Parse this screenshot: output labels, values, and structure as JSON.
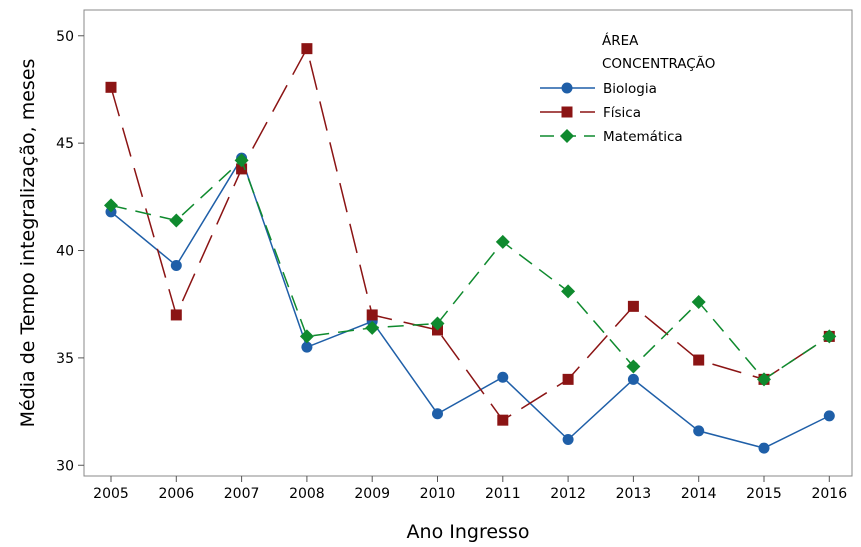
{
  "chart_data": {
    "type": "line",
    "xlabel": "Ano Ingresso",
    "ylabel": "Média de Tempo integralização, meses",
    "categories": [
      "2005",
      "2006",
      "2007",
      "2008",
      "2009",
      "2010",
      "2011",
      "2012",
      "2013",
      "2014",
      "2015",
      "2016"
    ],
    "yticks": [
      30,
      35,
      40,
      45,
      50
    ],
    "ylim": [
      29.5,
      51.2
    ],
    "grid": false,
    "legend": {
      "title_line1": "ÁREA",
      "title_line2": "CONCENTRAÇÃO",
      "placement": "top-right"
    },
    "series": [
      {
        "name": "Biologia",
        "color": "#1f5fa8",
        "marker": "circle",
        "line_style": "solid",
        "values": [
          41.8,
          39.3,
          44.3,
          35.5,
          36.7,
          32.4,
          34.1,
          31.2,
          34.0,
          31.6,
          30.8,
          32.3
        ]
      },
      {
        "name": "Física",
        "color": "#8b1414",
        "marker": "square",
        "line_style": "long-dash",
        "values": [
          47.6,
          37.0,
          43.8,
          49.4,
          37.0,
          36.3,
          32.1,
          34.0,
          37.4,
          34.9,
          34.0,
          36.0
        ]
      },
      {
        "name": "Matemática",
        "color": "#0f8a2e",
        "marker": "diamond",
        "line_style": "dash",
        "values": [
          42.1,
          41.4,
          44.2,
          36.0,
          36.4,
          36.6,
          40.4,
          38.1,
          34.6,
          37.6,
          34.0,
          36.0
        ]
      }
    ]
  }
}
